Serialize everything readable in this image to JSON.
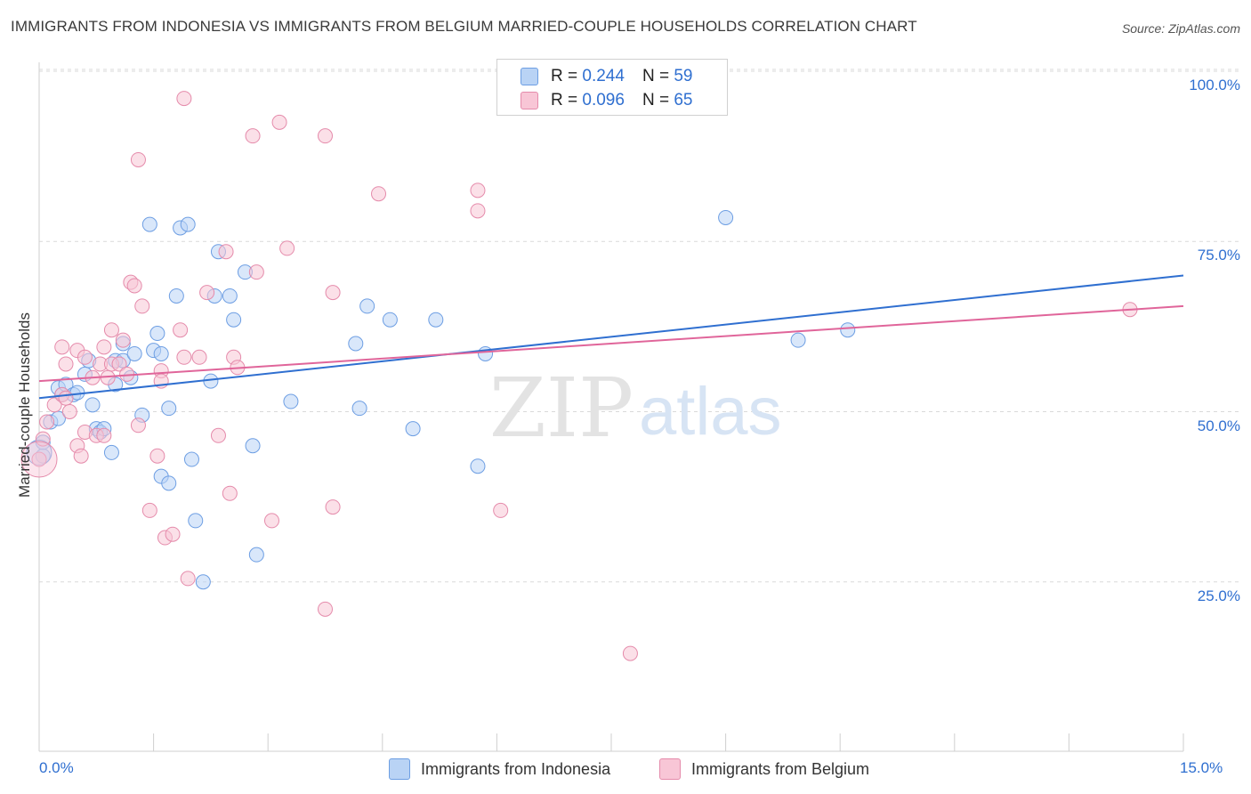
{
  "title": "IMMIGRANTS FROM INDONESIA VS IMMIGRANTS FROM BELGIUM MARRIED-COUPLE HOUSEHOLDS CORRELATION CHART",
  "source": "Source: ZipAtlas.com",
  "watermark": {
    "zip": "ZIP",
    "atlas": "atlas"
  },
  "legend_top": [
    {
      "r_label": "R =",
      "r_value": "0.244",
      "n_label": "N =",
      "n_value": "59"
    },
    {
      "r_label": "R =",
      "r_value": "0.096",
      "n_label": "N =",
      "n_value": "65"
    }
  ],
  "colors": {
    "blue_fill": "#b9d3f5",
    "blue_stroke": "#6d9ee3",
    "blue_line": "#2f6fd0",
    "pink_fill": "#f8c6d6",
    "pink_stroke": "#e58bab",
    "pink_line": "#e0659a",
    "tick_text": "#2f6fd0",
    "grid": "#d9d9d9"
  },
  "chart_data": {
    "type": "scatter",
    "title": "IMMIGRANTS FROM INDONESIA VS IMMIGRANTS FROM BELGIUM MARRIED-COUPLE HOUSEHOLDS CORRELATION CHART",
    "xlabel": "",
    "ylabel": "Married-couple Households",
    "xlim": [
      0,
      15
    ],
    "ylim": [
      0,
      100
    ],
    "x_tick_labels": [
      "0.0%",
      "15.0%"
    ],
    "y_ticks": [
      25,
      50,
      75,
      100
    ],
    "y_tick_labels": [
      "25.0%",
      "50.0%",
      "75.0%",
      "100.0%"
    ],
    "grid": "horizontal dashed",
    "legend_position": "top-center and bottom",
    "series": [
      {
        "name": "Immigrants from Indonesia",
        "color": "#6d9ee3",
        "trend": {
          "x0": 0,
          "y0": 52.0,
          "x1": 15,
          "y1": 70.0
        },
        "points": [
          [
            0.05,
            43.5
          ],
          [
            0.05,
            45.5
          ],
          [
            0.15,
            48.5
          ],
          [
            0.25,
            49.0
          ],
          [
            0.25,
            53.5
          ],
          [
            0.3,
            52.5
          ],
          [
            0.35,
            54.0
          ],
          [
            0.45,
            52.5
          ],
          [
            0.5,
            52.8
          ],
          [
            0.6,
            55.5
          ],
          [
            0.65,
            57.5
          ],
          [
            0.7,
            51.0
          ],
          [
            0.75,
            47.5
          ],
          [
            0.8,
            47.0
          ],
          [
            0.85,
            47.5
          ],
          [
            0.95,
            44.0
          ],
          [
            1.0,
            57.5
          ],
          [
            1.0,
            54.0
          ],
          [
            1.1,
            57.5
          ],
          [
            1.1,
            60.0
          ],
          [
            1.2,
            55.0
          ],
          [
            1.25,
            58.5
          ],
          [
            1.35,
            49.5
          ],
          [
            1.45,
            77.5
          ],
          [
            1.5,
            59.0
          ],
          [
            1.6,
            58.5
          ],
          [
            1.55,
            61.5
          ],
          [
            1.6,
            40.5
          ],
          [
            1.7,
            39.5
          ],
          [
            1.7,
            50.5
          ],
          [
            1.8,
            67.0
          ],
          [
            1.85,
            77.0
          ],
          [
            1.95,
            77.5
          ],
          [
            2.0,
            43.0
          ],
          [
            2.05,
            34.0
          ],
          [
            2.15,
            25.0
          ],
          [
            2.25,
            54.5
          ],
          [
            2.3,
            67.0
          ],
          [
            2.35,
            73.5
          ],
          [
            2.5,
            67.0
          ],
          [
            2.55,
            63.5
          ],
          [
            2.7,
            70.5
          ],
          [
            2.8,
            45.0
          ],
          [
            2.85,
            29.0
          ],
          [
            3.3,
            51.5
          ],
          [
            4.15,
            60.0
          ],
          [
            4.3,
            65.5
          ],
          [
            4.2,
            50.5
          ],
          [
            4.6,
            63.5
          ],
          [
            4.9,
            47.5
          ],
          [
            5.2,
            63.5
          ],
          [
            5.75,
            42.0
          ],
          [
            5.85,
            58.5
          ],
          [
            9.0,
            78.5
          ],
          [
            9.95,
            60.5
          ],
          [
            10.6,
            62.0
          ]
        ]
      },
      {
        "name": "Immigrants from Belgium",
        "color": "#e58bab",
        "trend": {
          "x0": 0,
          "y0": 54.5,
          "x1": 15,
          "y1": 65.5
        },
        "points": [
          [
            0.0,
            43.0
          ],
          [
            0.05,
            46.0
          ],
          [
            0.1,
            48.5
          ],
          [
            0.2,
            51.0
          ],
          [
            0.3,
            52.5
          ],
          [
            0.3,
            59.5
          ],
          [
            0.35,
            57.0
          ],
          [
            0.35,
            52.0
          ],
          [
            0.4,
            50.0
          ],
          [
            0.5,
            59.0
          ],
          [
            0.5,
            45.0
          ],
          [
            0.55,
            43.5
          ],
          [
            0.6,
            58.0
          ],
          [
            0.6,
            47.0
          ],
          [
            0.7,
            55.0
          ],
          [
            0.75,
            46.5
          ],
          [
            0.8,
            57.0
          ],
          [
            0.85,
            59.5
          ],
          [
            0.85,
            46.5
          ],
          [
            0.9,
            55.0
          ],
          [
            0.95,
            57.0
          ],
          [
            0.95,
            62.0
          ],
          [
            1.05,
            57.0
          ],
          [
            1.1,
            60.5
          ],
          [
            1.15,
            55.5
          ],
          [
            1.2,
            69.0
          ],
          [
            1.25,
            68.5
          ],
          [
            1.3,
            48.0
          ],
          [
            1.3,
            87.0
          ],
          [
            1.35,
            65.5
          ],
          [
            1.45,
            35.5
          ],
          [
            1.55,
            43.5
          ],
          [
            1.6,
            56.0
          ],
          [
            1.6,
            54.5
          ],
          [
            1.65,
            31.5
          ],
          [
            1.75,
            32.0
          ],
          [
            1.85,
            62.0
          ],
          [
            1.9,
            58.0
          ],
          [
            1.9,
            96.0
          ],
          [
            1.95,
            25.5
          ],
          [
            2.1,
            58.0
          ],
          [
            2.2,
            67.5
          ],
          [
            2.35,
            46.5
          ],
          [
            2.45,
            73.5
          ],
          [
            2.5,
            38.0
          ],
          [
            2.55,
            58.0
          ],
          [
            2.6,
            56.5
          ],
          [
            2.8,
            90.5
          ],
          [
            2.85,
            70.5
          ],
          [
            3.05,
            34.0
          ],
          [
            3.15,
            92.5
          ],
          [
            3.25,
            74.0
          ],
          [
            3.75,
            90.5
          ],
          [
            3.75,
            21.0
          ],
          [
            3.85,
            67.5
          ],
          [
            3.85,
            36.0
          ],
          [
            4.45,
            82.0
          ],
          [
            5.75,
            79.5
          ],
          [
            5.75,
            82.5
          ],
          [
            6.05,
            35.5
          ],
          [
            7.75,
            14.5
          ],
          [
            14.3,
            65.0
          ]
        ]
      }
    ]
  },
  "bottom_legend": [
    "Immigrants from Indonesia",
    "Immigrants from Belgium"
  ]
}
